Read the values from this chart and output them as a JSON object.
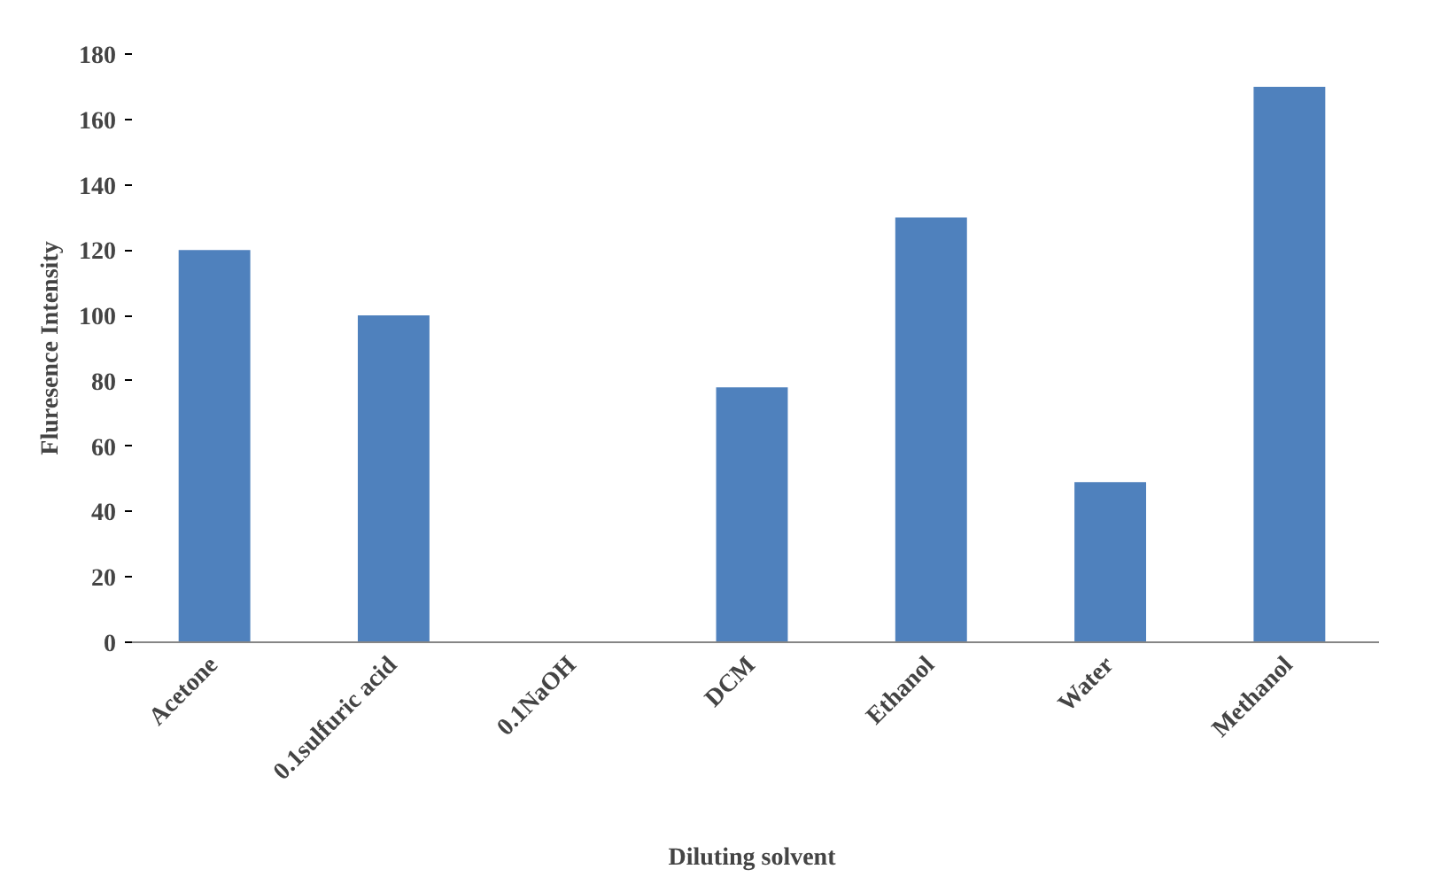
{
  "chart_data": {
    "type": "bar",
    "xlabel": "Diluting solvent",
    "ylabel": "Fluresence Intensity",
    "categories": [
      "Acetone",
      "0.1sulfuric acid",
      "0.1NaOH",
      "DCM",
      "Ethanol",
      "Water",
      "Methanol"
    ],
    "values": [
      120,
      100,
      0,
      78,
      130,
      49,
      170
    ],
    "color": "#4f81bd",
    "ylim": [
      0,
      180
    ],
    "yticks": [
      0,
      20,
      40,
      60,
      80,
      100,
      120,
      140,
      160,
      180
    ],
    "grid": false
  }
}
